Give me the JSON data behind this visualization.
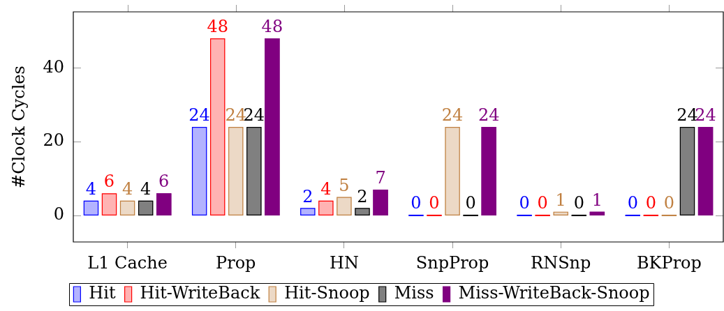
{
  "chart_data": {
    "type": "bar",
    "ylabel": "#Clock Cycles",
    "categories": [
      "L1 Cache",
      "Prop",
      "HN",
      "SnpProp",
      "RNSnp",
      "BKProp"
    ],
    "series": [
      {
        "name": "Hit",
        "color": "#b3b3ff",
        "values": [
          4,
          24,
          2,
          0,
          0,
          0
        ]
      },
      {
        "name": "Hit-WriteBack",
        "color": "#ffb3b3",
        "values": [
          6,
          48,
          4,
          0,
          0,
          0
        ]
      },
      {
        "name": "Hit-Snoop",
        "color": "#ecd9c6",
        "values": [
          4,
          24,
          5,
          24,
          1,
          0
        ]
      },
      {
        "name": "Miss",
        "color": "#808080",
        "values": [
          4,
          24,
          2,
          0,
          0,
          24
        ]
      },
      {
        "name": "Miss-WriteBack-Snoop",
        "color": "#800080",
        "values": [
          6,
          48,
          7,
          24,
          1,
          24
        ]
      }
    ],
    "ylim": [
      -7.2,
      55.2
    ],
    "yticks": [
      0,
      20,
      40
    ],
    "data_labels": true,
    "legend": "bottom"
  }
}
